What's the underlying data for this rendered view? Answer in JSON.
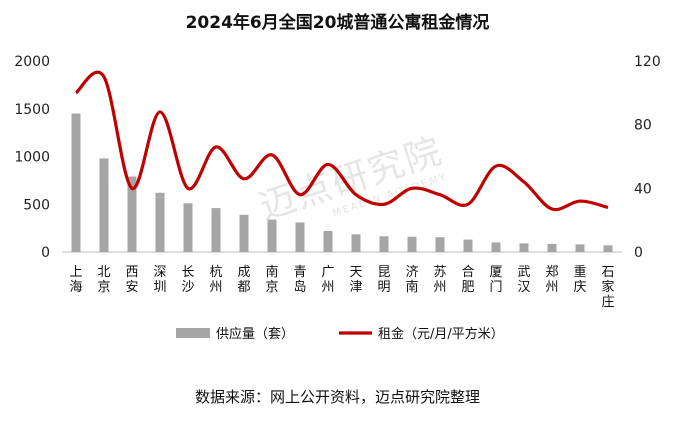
{
  "chart_data": {
    "type": "bar+line",
    "title": "2024年6月全国20城普通公寓租金情况",
    "categories": [
      "上海",
      "北京",
      "西安",
      "深圳",
      "长沙",
      "杭州",
      "成都",
      "南京",
      "青岛",
      "广州",
      "天津",
      "昆明",
      "济南",
      "苏州",
      "合肥",
      "厦门",
      "武汉",
      "郑州",
      "重庆",
      "石家庄"
    ],
    "series": [
      {
        "name": "供应量（套）",
        "type": "bar",
        "axis": "left",
        "color": "#a6a6a6",
        "values": [
          1450,
          980,
          790,
          620,
          510,
          460,
          390,
          340,
          310,
          220,
          185,
          165,
          160,
          155,
          130,
          100,
          90,
          85,
          80,
          70
        ]
      },
      {
        "name": "租金（元/月/平方米）",
        "type": "line",
        "axis": "right",
        "color": "#c00000",
        "values": [
          100,
          110,
          40,
          88,
          40,
          66,
          46,
          61,
          36,
          55,
          36,
          30,
          40,
          36,
          30,
          54,
          44,
          27,
          32,
          28
        ]
      }
    ],
    "left_axis": {
      "ylim": [
        0,
        2000
      ],
      "ticks": [
        0,
        500,
        1000,
        1500,
        2000
      ]
    },
    "right_axis": {
      "ylim": [
        0,
        120
      ],
      "ticks": [
        0,
        40,
        80,
        120
      ]
    },
    "legend_position": "bottom",
    "source": "数据来源：网上公开资料，迈点研究院整理",
    "watermark": {
      "text": "迈点研究院",
      "subtext": "MEADIN ACADEMY"
    }
  }
}
